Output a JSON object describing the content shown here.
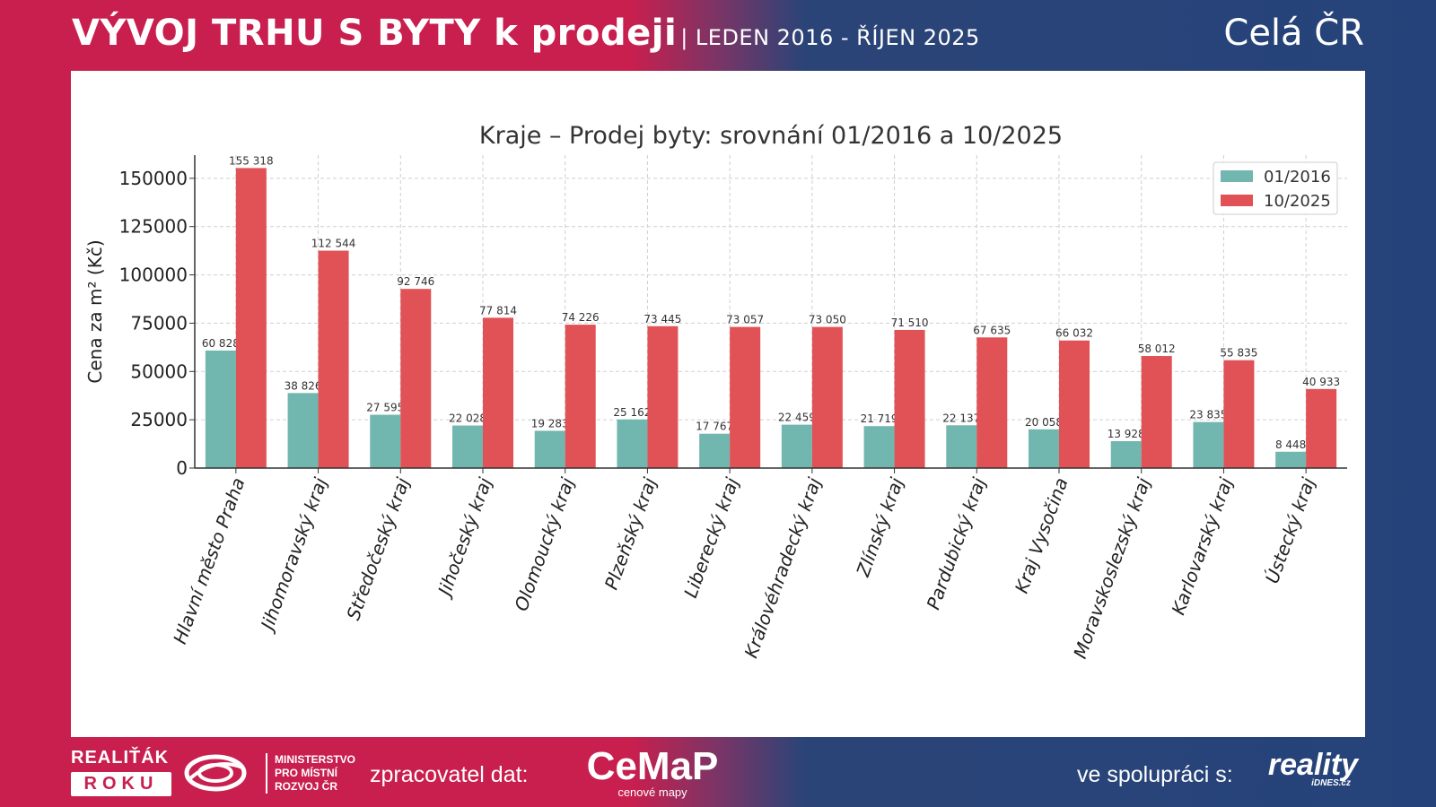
{
  "header": {
    "title": "VÝVOJ TRHU S BYTY k prodeji",
    "subtitle": "| LEDEN 2016 - ŘÍJEN 2025",
    "region": "Celá ČR"
  },
  "colors": {
    "brand_red": "#c81f4e",
    "brand_blue": "#25437a",
    "series_2016": "#72b6b0",
    "series_2025": "#e05256"
  },
  "footer": {
    "realitak_top": "REALIŤÁK",
    "realitak_bottom": "ROKU",
    "ministry_line1": "MINISTERSTVO",
    "ministry_line2": "PRO MÍSTNÍ",
    "ministry_line3": "ROZVOJ ČR",
    "processor_label": "zpracovatel dat:",
    "cemap_name": "CeMaP",
    "cemap_tagline": "cenové mapy",
    "coop_label": "ve spolupráci s:",
    "reality_name": "reality",
    "reality_domain": "iDNES.cz"
  },
  "chart_data": {
    "type": "bar",
    "title": "Kraje – Prodej byty: srovnání 01/2016 a 10/2025",
    "xlabel": "",
    "ylabel": "Cena za m² (Kč)",
    "ylim": [
      0,
      162000
    ],
    "yticks": [
      0,
      25000,
      50000,
      75000,
      100000,
      125000,
      150000
    ],
    "grid": true,
    "legend_position": "top-right",
    "categories": [
      "Hlavní město Praha",
      "Jihomoravský kraj",
      "Středočeský kraj",
      "Jihočeský kraj",
      "Olomoucký kraj",
      "Plzeňský kraj",
      "Liberecký kraj",
      "Královéhradecký kraj",
      "Zlínský kraj",
      "Pardubický kraj",
      "Kraj Vysočina",
      "Moravskoslezský kraj",
      "Karlovarský kraj",
      "Ústecký kraj"
    ],
    "series": [
      {
        "name": "01/2016",
        "color": "#72b6b0",
        "values": [
          60828,
          38826,
          27595,
          22028,
          19283,
          25162,
          17767,
          22459,
          21719,
          22137,
          20058,
          13928,
          23835,
          8448
        ],
        "labels": [
          "60 828",
          "38 826",
          "27 595",
          "22 028",
          "19 283",
          "25 162",
          "17 767",
          "22 459",
          "21 719",
          "22 137",
          "20 058",
          "13 928",
          "23 835",
          "8 448"
        ]
      },
      {
        "name": "10/2025",
        "color": "#e05256",
        "values": [
          155318,
          112544,
          92746,
          77814,
          74226,
          73445,
          73057,
          73050,
          71510,
          67635,
          66032,
          58012,
          55835,
          40933
        ],
        "labels": [
          "155 318",
          "112 544",
          "92 746",
          "77 814",
          "74 226",
          "73 445",
          "73 057",
          "73 050",
          "71 510",
          "67 635",
          "66 032",
          "58 012",
          "55 835",
          "40 933"
        ]
      }
    ]
  }
}
